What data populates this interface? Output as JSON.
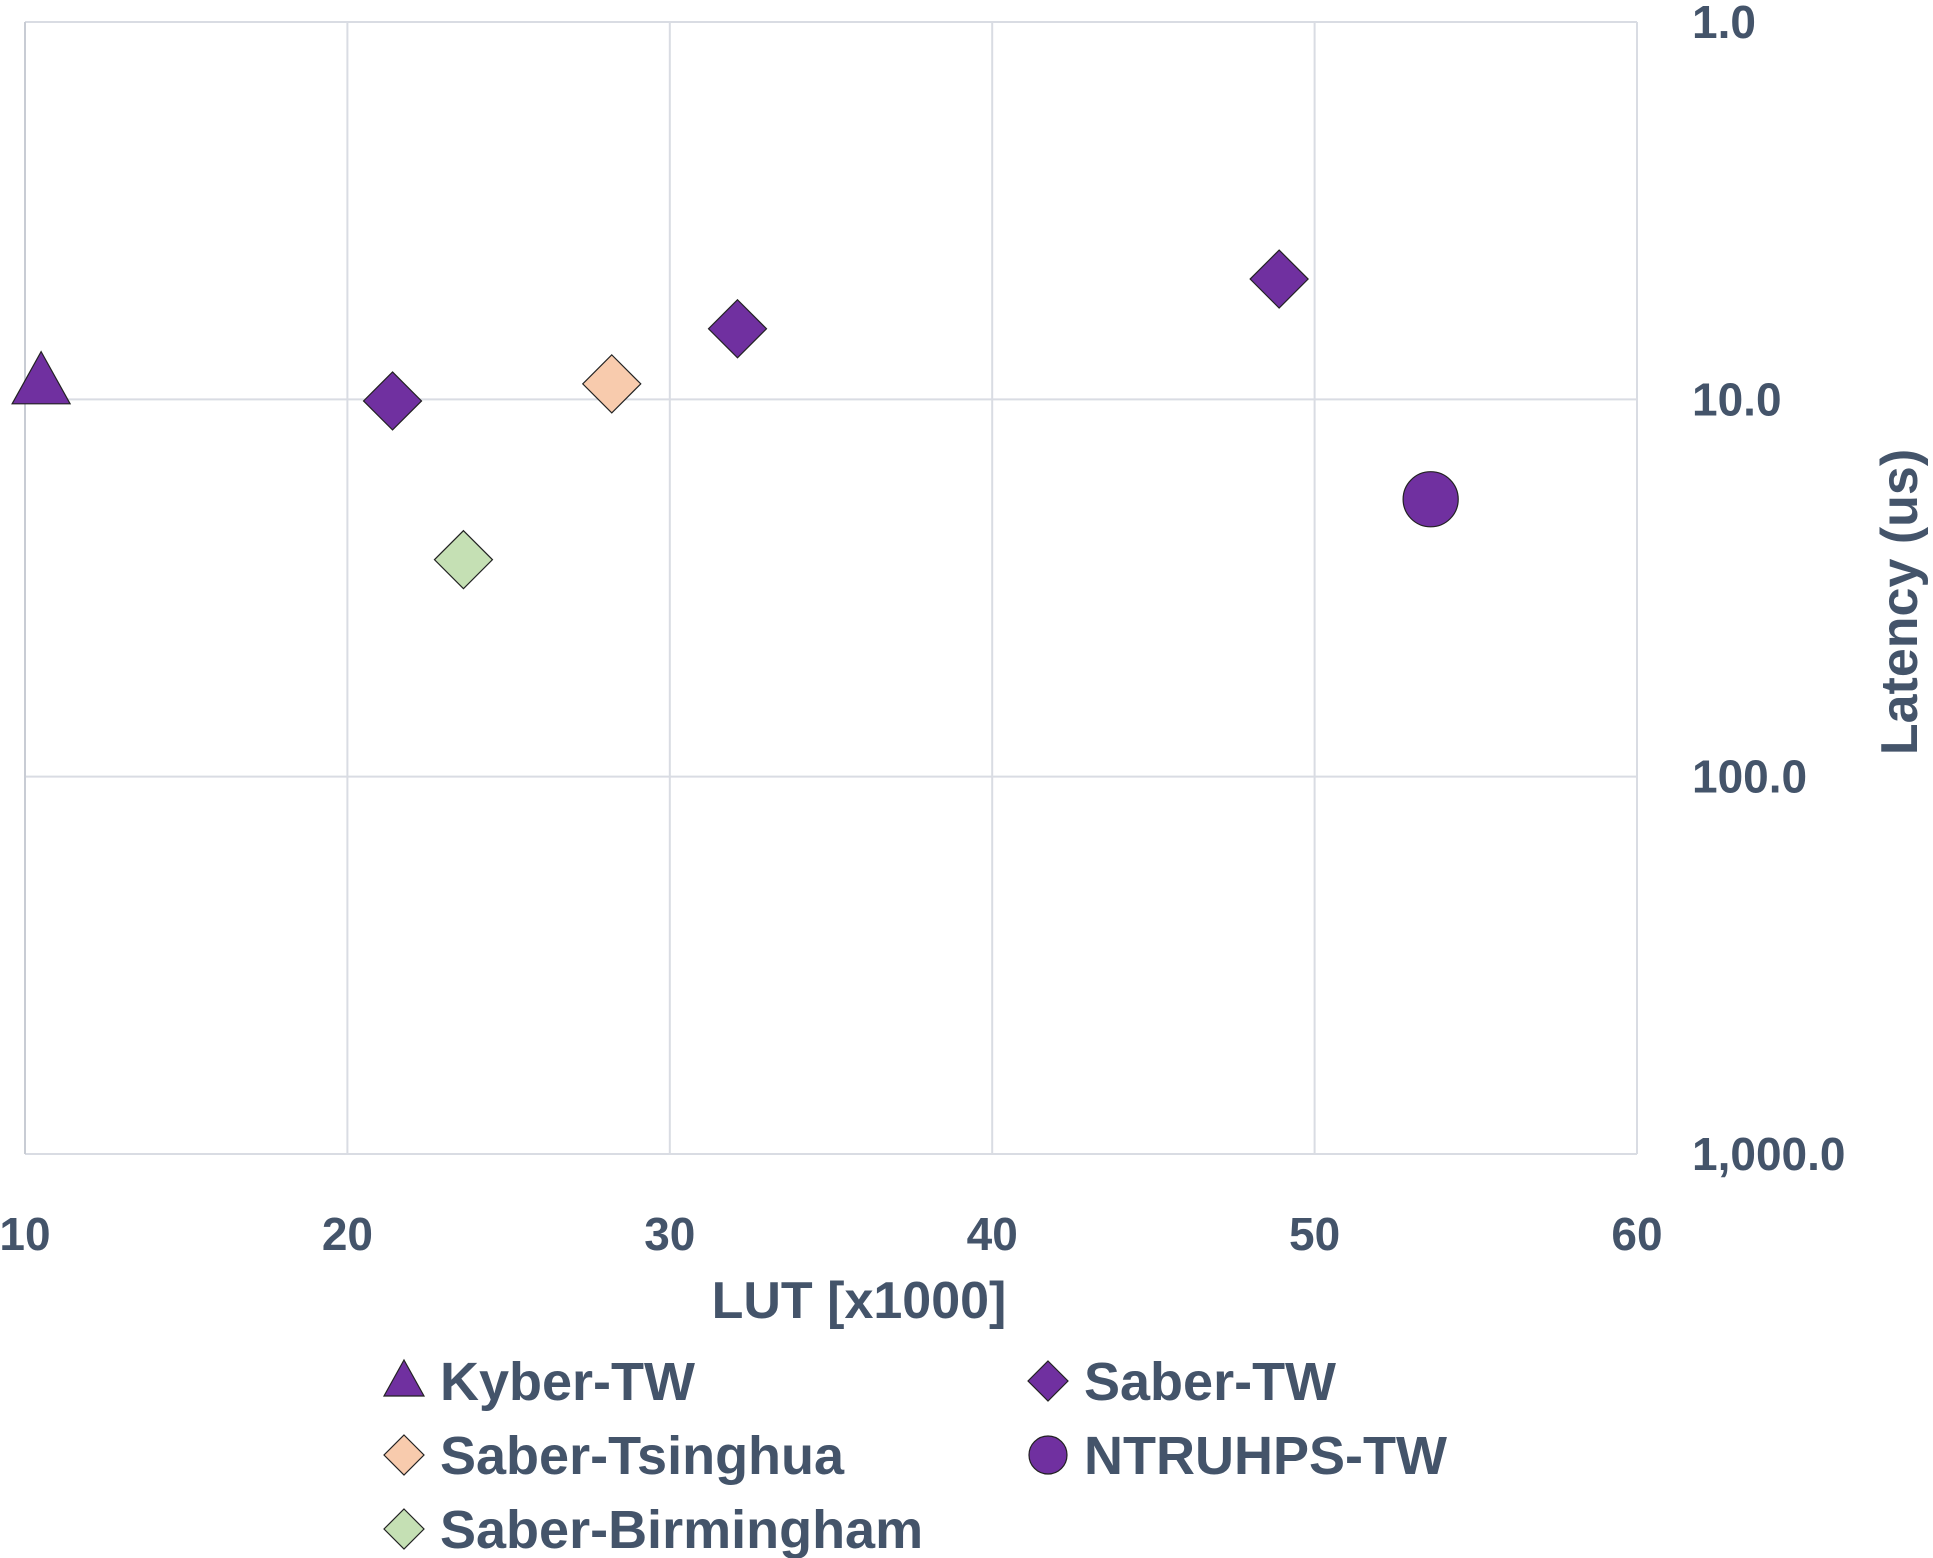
{
  "chart_data": {
    "type": "scatter",
    "title": "",
    "xlabel": "LUT [x1000]",
    "ylabel": "Latency (us)",
    "xlim": [
      10,
      60
    ],
    "ylim": [
      1,
      1000
    ],
    "y_scale": "log",
    "y_reversed": true,
    "y_axis_position": "right",
    "grid": true,
    "legend_position": "bottom",
    "x_ticks": [
      "10",
      "20",
      "30",
      "40",
      "50",
      "60"
    ],
    "y_ticks": [
      "1.0",
      "10.0",
      "100.0",
      "1,000.0"
    ],
    "y_tick_values": [
      1,
      10,
      100,
      1000
    ],
    "x_tick_values": [
      10,
      20,
      30,
      40,
      50,
      60
    ],
    "colors": {
      "text": "#44546a",
      "grid": "#d9dce3",
      "purple": "#7030a0",
      "peach": "#f8cbad",
      "green": "#c5e0b4"
    },
    "series": [
      {
        "name": "Kyber-TW",
        "marker": "triangle",
        "color": "#7030a0",
        "points": [
          [
            10.5,
            9.0
          ]
        ]
      },
      {
        "name": "Saber-TW",
        "marker": "diamond",
        "color": "#7030a0",
        "points": [
          [
            21.4,
            10.1
          ],
          [
            32.1,
            6.5
          ],
          [
            48.9,
            4.8
          ]
        ]
      },
      {
        "name": "Saber-Tsinghua",
        "marker": "diamond",
        "color": "#f8cbad",
        "points": [
          [
            28.2,
            9.1
          ]
        ]
      },
      {
        "name": "NTRUHPS-TW",
        "marker": "circle",
        "color": "#7030a0",
        "points": [
          [
            53.6,
            18.4
          ]
        ]
      },
      {
        "name": "Saber-Birmingham",
        "marker": "diamond",
        "color": "#c5e0b4",
        "points": [
          [
            23.6,
            26.6
          ]
        ]
      }
    ]
  }
}
